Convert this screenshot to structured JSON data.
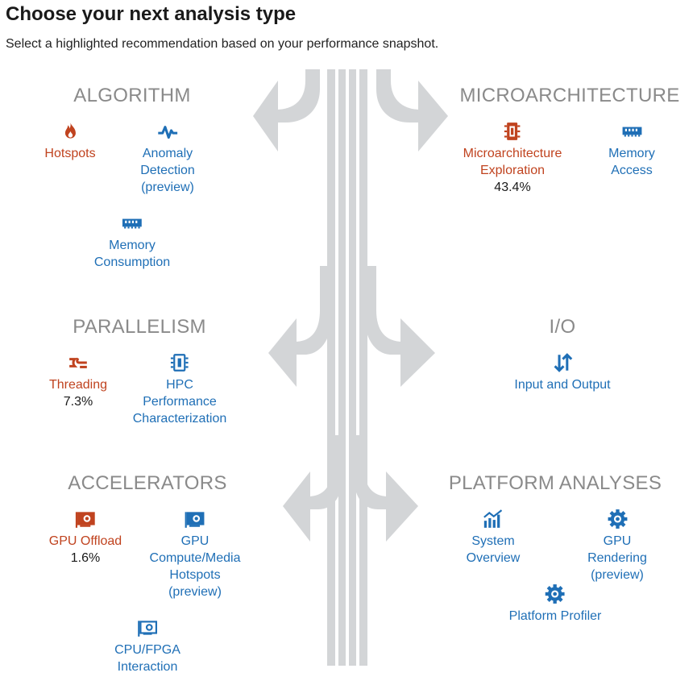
{
  "header": {
    "title": "Choose your next analysis type",
    "subtitle": "Select a highlighted recommendation based on your performance snapshot."
  },
  "colors": {
    "recommended": "#c0431f",
    "normal": "#1f6fb6",
    "section_title": "#8a8a8a",
    "arrows": "#d3d5d7"
  },
  "sections": {
    "algorithm": {
      "title": "ALGORITHM",
      "items": [
        {
          "label": "Hotspots",
          "icon": "flame-icon",
          "recommended": true
        },
        {
          "label": "Anomaly\nDetection\n(preview)",
          "icon": "pulse-icon",
          "recommended": false
        },
        {
          "label": "Memory\nConsumption",
          "icon": "memory-icon",
          "recommended": false
        }
      ]
    },
    "microarchitecture": {
      "title": "MICROARCHITECTURE",
      "items": [
        {
          "label": "Microarchitecture\nExploration",
          "value": "43.4%",
          "icon": "cpu-chip-icon",
          "recommended": true
        },
        {
          "label": "Memory Access",
          "icon": "memory-icon",
          "recommended": false
        }
      ]
    },
    "parallelism": {
      "title": "PARALLELISM",
      "items": [
        {
          "label": "Threading",
          "value": "7.3%",
          "icon": "threading-icon",
          "recommended": true
        },
        {
          "label": "HPC\nPerformance\nCharacterization",
          "icon": "hpc-chip-icon",
          "recommended": false
        }
      ]
    },
    "io": {
      "title": "I/O",
      "items": [
        {
          "label": "Input and Output",
          "icon": "up-down-arrows-icon",
          "recommended": false
        }
      ]
    },
    "accelerators": {
      "title": "ACCELERATORS",
      "items": [
        {
          "label": "GPU Offload",
          "value": "1.6%",
          "icon": "gpu-card-icon",
          "recommended": true
        },
        {
          "label": "GPU\nCompute/Media\nHotspots\n(preview)",
          "icon": "gpu-card-icon",
          "recommended": false
        },
        {
          "label": "CPU/FPGA\nInteraction",
          "icon": "fpga-card-icon",
          "recommended": false
        }
      ]
    },
    "platform": {
      "title": "PLATFORM ANALYSES",
      "items": [
        {
          "label": "System\nOverview",
          "icon": "bar-chart-icon",
          "recommended": false
        },
        {
          "label": "GPU Rendering\n(preview)",
          "icon": "gear-icon",
          "recommended": false
        },
        {
          "label": "Platform Profiler",
          "icon": "gear-icon",
          "recommended": false
        }
      ]
    }
  }
}
